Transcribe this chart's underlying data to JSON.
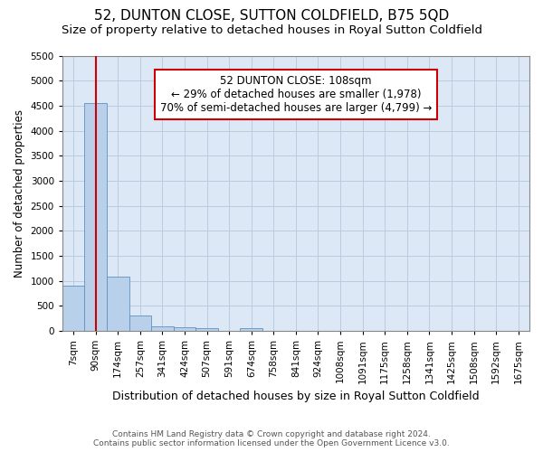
{
  "title": "52, DUNTON CLOSE, SUTTON COLDFIELD, B75 5QD",
  "subtitle": "Size of property relative to detached houses in Royal Sutton Coldfield",
  "xlabel": "Distribution of detached houses by size in Royal Sutton Coldfield",
  "ylabel": "Number of detached properties",
  "bar_color": "#b8d0ea",
  "bar_edge_color": "#6090c0",
  "annotation_box_color": "#cc0000",
  "property_line_color": "#cc0000",
  "annotation_text": "52 DUNTON CLOSE: 108sqm\n← 29% of detached houses are smaller (1,978)\n70% of semi-detached houses are larger (4,799) →",
  "footer_line1": "Contains HM Land Registry data © Crown copyright and database right 2024.",
  "footer_line2": "Contains public sector information licensed under the Open Government Licence v3.0.",
  "categories": [
    "7sqm",
    "90sqm",
    "174sqm",
    "257sqm",
    "341sqm",
    "424sqm",
    "507sqm",
    "591sqm",
    "674sqm",
    "758sqm",
    "841sqm",
    "924sqm",
    "1008sqm",
    "1091sqm",
    "1175sqm",
    "1258sqm",
    "1341sqm",
    "1425sqm",
    "1508sqm",
    "1592sqm",
    "1675sqm"
  ],
  "values": [
    900,
    4560,
    1075,
    300,
    90,
    75,
    60,
    0,
    60,
    0,
    0,
    0,
    0,
    0,
    0,
    0,
    0,
    0,
    0,
    0,
    0
  ],
  "ylim": [
    0,
    5500
  ],
  "yticks": [
    0,
    500,
    1000,
    1500,
    2000,
    2500,
    3000,
    3500,
    4000,
    4500,
    5000,
    5500
  ],
  "property_line_x": 1.0,
  "background_color": "#ffffff",
  "plot_bg_color": "#dce8f5",
  "grid_color": "#b8cce0",
  "title_fontsize": 11,
  "subtitle_fontsize": 9.5,
  "tick_fontsize": 7.5,
  "ylabel_fontsize": 8.5,
  "xlabel_fontsize": 9,
  "annotation_fontsize": 8.5,
  "footer_fontsize": 6.5
}
